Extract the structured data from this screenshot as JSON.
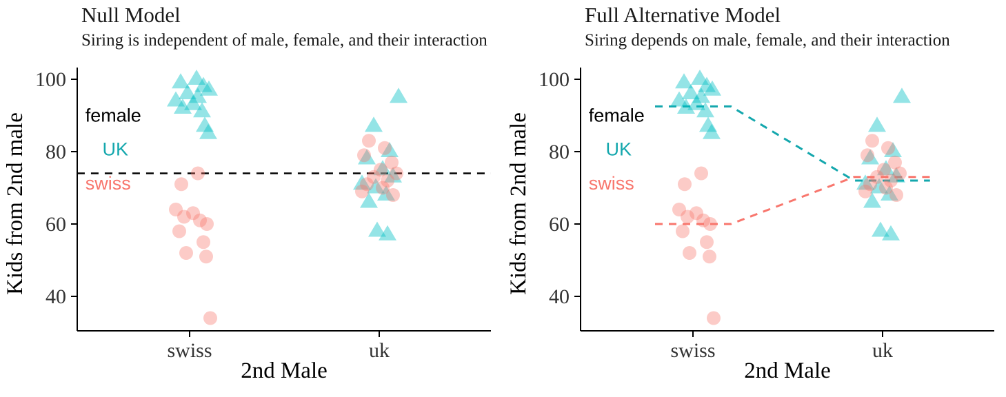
{
  "chart_data": [
    {
      "type": "scatter",
      "title": "Null Model",
      "subtitle": "Siring is independent of male, female, and their interaction",
      "xlabel": "2nd Male",
      "ylabel": "Kids from 2nd male",
      "categories": [
        "swiss",
        "uk"
      ],
      "yticks": [
        40,
        60,
        80,
        100
      ],
      "ylim": [
        30.5,
        103
      ],
      "grid": "off",
      "annotations": [
        {
          "text": "female",
          "color": "#000000",
          "x": -0.55,
          "y": 88.3
        },
        {
          "text": "UK",
          "color": "#14A7AD",
          "x": -0.46,
          "y": 79
        },
        {
          "text": "swiss",
          "color": "#F8766D",
          "x": -0.55,
          "y": 69.5
        }
      ],
      "series": [
        {
          "name": "UK female",
          "key": "uk-female",
          "marker": "triangle",
          "color": "#00BFC4",
          "opacity": 0.42,
          "groups": {
            "swiss": [
              [
                10,
                100
              ],
              [
                -13,
                99
              ],
              [
                20,
                98
              ],
              [
                28,
                97
              ],
              [
                -3,
                96
              ],
              [
                12,
                95
              ],
              [
                -20,
                94
              ],
              [
                5,
                93
              ],
              [
                -10,
                92
              ],
              [
                18,
                91
              ],
              [
                22,
                87
              ],
              [
                27,
                85
              ]
            ],
            "uk": [
              [
                28,
                95
              ],
              [
                -8,
                87
              ],
              [
                15,
                80
              ],
              [
                -18,
                78
              ],
              [
                5,
                75
              ],
              [
                20,
                73
              ],
              [
                -25,
                71
              ],
              [
                -5,
                70
              ],
              [
                10,
                68
              ],
              [
                -15,
                66
              ],
              [
                -3,
                58
              ],
              [
                12,
                57
              ]
            ]
          }
        },
        {
          "name": "swiss female",
          "key": "swiss-female",
          "marker": "circle",
          "color": "#F8766D",
          "opacity": 0.38,
          "groups": {
            "swiss": [
              [
                12,
                74
              ],
              [
                -12,
                71
              ],
              [
                -20,
                64
              ],
              [
                5,
                63
              ],
              [
                -8,
                62
              ],
              [
                15,
                61
              ],
              [
                25,
                60
              ],
              [
                -15,
                58
              ],
              [
                20,
                55
              ],
              [
                -5,
                52
              ],
              [
                24,
                51
              ],
              [
                30,
                34
              ]
            ],
            "uk": [
              [
                -15,
                83
              ],
              [
                8,
                81
              ],
              [
                -22,
                79
              ],
              [
                18,
                77
              ],
              [
                2,
                75
              ],
              [
                25,
                74
              ],
              [
                -8,
                73
              ],
              [
                12,
                72
              ],
              [
                -18,
                71
              ],
              [
                5,
                70
              ],
              [
                -25,
                69
              ],
              [
                20,
                68
              ]
            ]
          }
        }
      ],
      "mean_lines": [
        {
          "name": "grand-mean",
          "color": "#000000",
          "width": 2.5,
          "points": [
            [
              -0.593,
              74
            ],
            [
              1.589,
              74
            ]
          ]
        }
      ]
    },
    {
      "type": "scatter",
      "title": "Full Alternative Model",
      "subtitle": "Siring depends on male, female, and their interaction",
      "xlabel": "2nd Male",
      "ylabel": "Kids from 2nd male",
      "categories": [
        "swiss",
        "uk"
      ],
      "yticks": [
        40,
        60,
        80,
        100
      ],
      "ylim": [
        30.5,
        103
      ],
      "grid": "off",
      "annotations": [
        {
          "text": "female",
          "color": "#000000",
          "x": -0.55,
          "y": 88.3
        },
        {
          "text": "UK",
          "color": "#14A7AD",
          "x": -0.46,
          "y": 79
        },
        {
          "text": "swiss",
          "color": "#F8766D",
          "x": -0.55,
          "y": 69.5
        }
      ],
      "series": [
        {
          "name": "UK female",
          "key": "uk-female",
          "marker": "triangle",
          "color": "#00BFC4",
          "opacity": 0.42,
          "groups": {
            "swiss": [
              [
                10,
                100
              ],
              [
                -13,
                99
              ],
              [
                20,
                98
              ],
              [
                28,
                97
              ],
              [
                -3,
                96
              ],
              [
                12,
                95
              ],
              [
                -20,
                94
              ],
              [
                5,
                93
              ],
              [
                -10,
                92
              ],
              [
                18,
                91
              ],
              [
                22,
                87
              ],
              [
                27,
                85
              ]
            ],
            "uk": [
              [
                28,
                95
              ],
              [
                -8,
                87
              ],
              [
                15,
                80
              ],
              [
                -18,
                78
              ],
              [
                5,
                75
              ],
              [
                20,
                73
              ],
              [
                -25,
                71
              ],
              [
                -5,
                70
              ],
              [
                10,
                68
              ],
              [
                -15,
                66
              ],
              [
                -3,
                58
              ],
              [
                12,
                57
              ]
            ]
          }
        },
        {
          "name": "swiss female",
          "key": "swiss-female",
          "marker": "circle",
          "color": "#F8766D",
          "opacity": 0.38,
          "groups": {
            "swiss": [
              [
                12,
                74
              ],
              [
                -12,
                71
              ],
              [
                -20,
                64
              ],
              [
                5,
                63
              ],
              [
                -8,
                62
              ],
              [
                15,
                61
              ],
              [
                25,
                60
              ],
              [
                -15,
                58
              ],
              [
                20,
                55
              ],
              [
                -5,
                52
              ],
              [
                24,
                51
              ],
              [
                30,
                34
              ]
            ],
            "uk": [
              [
                -15,
                83
              ],
              [
                8,
                81
              ],
              [
                -22,
                79
              ],
              [
                18,
                77
              ],
              [
                2,
                75
              ],
              [
                25,
                74
              ],
              [
                -8,
                73
              ],
              [
                12,
                72
              ],
              [
                -18,
                71
              ],
              [
                5,
                70
              ],
              [
                -25,
                69
              ],
              [
                20,
                68
              ]
            ]
          }
        }
      ],
      "mean_lines": [
        {
          "name": "uk-female-mean",
          "color": "#14A7AD",
          "width": 3,
          "points": [
            [
              -0.2,
              92.5
            ],
            [
              0.2,
              92.5
            ],
            [
              0.85,
              72
            ],
            [
              1.25,
              72
            ]
          ]
        },
        {
          "name": "swiss-female-mean",
          "color": "#F8766D",
          "width": 3,
          "points": [
            [
              -0.2,
              60
            ],
            [
              0.2,
              60
            ],
            [
              0.85,
              73
            ],
            [
              1.25,
              73
            ]
          ]
        }
      ]
    }
  ]
}
